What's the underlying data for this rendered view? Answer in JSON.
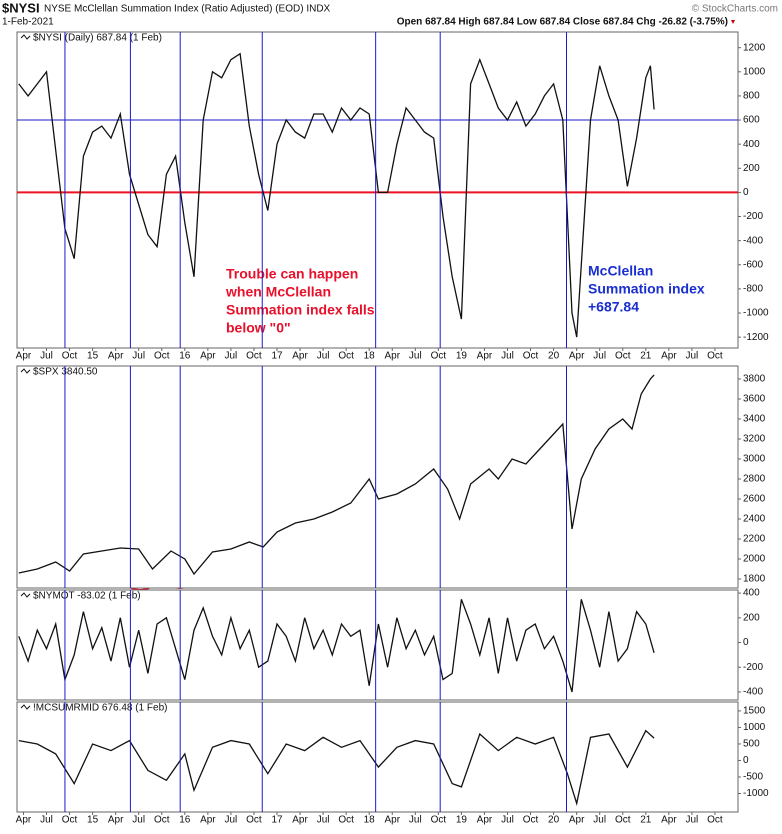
{
  "header": {
    "symbol": "$NYSI",
    "title": "NYSE McClellan Summation Index (Ratio Adjusted) (EOD) INDX",
    "date": "1-Feb-2021",
    "ohlc": "Open 687.84 High 687.84 Low 687.84 Close 687.84 Chg -26.82 (-3.75%)",
    "credit": "© StockCharts.com"
  },
  "event_lines": {
    "color": "#1a1acc",
    "x": [
      2014.7,
      2015.41,
      2015.95,
      2016.84,
      2018.07,
      2018.77,
      2020.14
    ]
  },
  "chart_data": [
    {
      "type": "line",
      "xlim": [
        2014.18,
        2022.0
      ],
      "ylim": [
        -1290,
        1330
      ],
      "yticks": [
        -1200,
        -1000,
        -800,
        -600,
        -400,
        -200,
        0,
        200,
        400,
        600,
        800,
        1000,
        1200
      ],
      "xticks": [
        {
          "value": 2014.25,
          "label": "Apr"
        },
        {
          "value": 2014.5,
          "label": "Jul"
        },
        {
          "value": 2014.75,
          "label": "Oct"
        },
        {
          "value": 2015,
          "label": "15"
        },
        {
          "value": 2015.25,
          "label": "Apr"
        },
        {
          "value": 2015.5,
          "label": "Jul"
        },
        {
          "value": 2015.75,
          "label": "Oct"
        },
        {
          "value": 2016,
          "label": "16"
        },
        {
          "value": 2016.25,
          "label": "Apr"
        },
        {
          "value": 2016.5,
          "label": "Jul"
        },
        {
          "value": 2016.75,
          "label": "Oct"
        },
        {
          "value": 2017,
          "label": "17"
        },
        {
          "value": 2017.25,
          "label": "Apr"
        },
        {
          "value": 2017.5,
          "label": "Jul"
        },
        {
          "value": 2017.75,
          "label": "Oct"
        },
        {
          "value": 2018,
          "label": "18"
        },
        {
          "value": 2018.25,
          "label": "Apr"
        },
        {
          "value": 2018.5,
          "label": "Jul"
        },
        {
          "value": 2018.75,
          "label": "Oct"
        },
        {
          "value": 2019,
          "label": "19"
        },
        {
          "value": 2019.25,
          "label": "Apr"
        },
        {
          "value": 2019.5,
          "label": "Jul"
        },
        {
          "value": 2019.75,
          "label": "Oct"
        },
        {
          "value": 2020,
          "label": "20"
        },
        {
          "value": 2020.25,
          "label": "Apr"
        },
        {
          "value": 2020.5,
          "label": "Jul"
        },
        {
          "value": 2020.75,
          "label": "Oct"
        },
        {
          "value": 2021,
          "label": "21"
        },
        {
          "value": 2021.25,
          "label": "Apr"
        },
        {
          "value": 2021.5,
          "label": "Jul"
        },
        {
          "value": 2021.75,
          "label": "Oct"
        }
      ],
      "hlines": [
        {
          "value": 0,
          "color": "#ee1122"
        },
        {
          "value": 600,
          "color": "#1a1acc"
        }
      ],
      "x": [
        2014.2,
        2014.3,
        2014.4,
        2014.5,
        2014.6,
        2014.7,
        2014.8,
        2014.9,
        2015,
        2015.1,
        2015.2,
        2015.3,
        2015.4,
        2015.5,
        2015.6,
        2015.7,
        2015.8,
        2015.9,
        2016,
        2016.1,
        2016.2,
        2016.3,
        2016.4,
        2016.5,
        2016.6,
        2016.7,
        2016.8,
        2016.9,
        2017,
        2017.1,
        2017.2,
        2017.3,
        2017.4,
        2017.5,
        2017.6,
        2017.7,
        2017.8,
        2017.9,
        2018,
        2018.1,
        2018.2,
        2018.3,
        2018.4,
        2018.5,
        2018.6,
        2018.7,
        2018.8,
        2018.9,
        2019,
        2019.1,
        2019.2,
        2019.3,
        2019.4,
        2019.5,
        2019.6,
        2019.7,
        2019.8,
        2019.9,
        2020,
        2020.1,
        2020.2,
        2020.25,
        2020.3,
        2020.4,
        2020.5,
        2020.6,
        2020.7,
        2020.8,
        2020.9,
        2021,
        2021.05,
        2021.09
      ],
      "series": [
        {
          "name": "$NYSI (Daily) 687.84 (1 Feb)",
          "color": "#111111",
          "values": [
            900,
            800,
            900,
            1000,
            350,
            -300,
            -550,
            300,
            500,
            550,
            450,
            650,
            150,
            -100,
            -350,
            -450,
            150,
            300,
            -250,
            -700,
            600,
            1000,
            950,
            1100,
            1150,
            550,
            150,
            -150,
            400,
            600,
            500,
            450,
            650,
            650,
            500,
            700,
            600,
            700,
            650,
            0,
            0,
            400,
            700,
            600,
            500,
            450,
            -200,
            -700,
            -1050,
            900,
            1100,
            900,
            700,
            600,
            750,
            550,
            650,
            800,
            900,
            600,
            -1000,
            -1200,
            -600,
            600,
            1050,
            800,
            600,
            50,
            450,
            950,
            1050,
            687.84
          ]
        }
      ],
      "annotations": [
        {
          "color": "#e8102a",
          "lines": [
            "Trouble can happen",
            "when McClellan",
            "Summation index falls",
            "below \"0\""
          ]
        },
        {
          "color": "#1a2fd0",
          "lines": [
            "McClellan",
            "Summation index",
            "+687.84"
          ]
        }
      ]
    },
    {
      "type": "line",
      "xlim": [
        2014.18,
        2022.0
      ],
      "ylim": [
        1710,
        3930
      ],
      "yticks": [
        1800,
        2000,
        2200,
        2400,
        2600,
        2800,
        3000,
        3200,
        3400,
        3600,
        3800
      ],
      "x": [
        2014.2,
        2014.4,
        2014.6,
        2014.75,
        2014.9,
        2015.1,
        2015.3,
        2015.5,
        2015.65,
        2015.85,
        2016,
        2016.1,
        2016.3,
        2016.5,
        2016.7,
        2016.85,
        2017,
        2017.2,
        2017.4,
        2017.6,
        2017.8,
        2018,
        2018.1,
        2018.3,
        2018.5,
        2018.7,
        2018.85,
        2018.98,
        2019.1,
        2019.3,
        2019.4,
        2019.55,
        2019.7,
        2019.9,
        2020.1,
        2020.2,
        2020.3,
        2020.45,
        2020.6,
        2020.75,
        2020.85,
        2020.95,
        2021.05,
        2021.09
      ],
      "series": [
        {
          "name": "$SPX 3840.50",
          "color": "#111111",
          "values": [
            1860,
            1900,
            1970,
            1880,
            2050,
            2080,
            2110,
            2100,
            1900,
            2080,
            2000,
            1850,
            2070,
            2100,
            2170,
            2120,
            2270,
            2360,
            2400,
            2470,
            2560,
            2800,
            2600,
            2650,
            2750,
            2900,
            2700,
            2400,
            2750,
            2900,
            2800,
            3000,
            2950,
            3150,
            3350,
            2300,
            2800,
            3100,
            3300,
            3400,
            3300,
            3650,
            3800,
            3840.5
          ]
        }
      ]
    },
    {
      "type": "line",
      "xlim": [
        2014.18,
        2022.0
      ],
      "ylim": [
        -465,
        425
      ],
      "yticks": [
        -400,
        -200,
        0,
        200,
        400
      ],
      "x": [
        2014.2,
        2014.3,
        2014.4,
        2014.5,
        2014.6,
        2014.7,
        2014.8,
        2014.9,
        2015,
        2015.1,
        2015.2,
        2015.3,
        2015.4,
        2015.5,
        2015.6,
        2015.7,
        2015.8,
        2015.9,
        2016,
        2016.1,
        2016.2,
        2016.3,
        2016.4,
        2016.5,
        2016.6,
        2016.7,
        2016.8,
        2016.9,
        2017,
        2017.1,
        2017.2,
        2017.3,
        2017.4,
        2017.5,
        2017.6,
        2017.7,
        2017.8,
        2017.9,
        2018,
        2018.1,
        2018.2,
        2018.3,
        2018.4,
        2018.5,
        2018.6,
        2018.7,
        2018.8,
        2018.9,
        2019,
        2019.1,
        2019.2,
        2019.3,
        2019.4,
        2019.5,
        2019.6,
        2019.7,
        2019.8,
        2019.9,
        2020,
        2020.1,
        2020.2,
        2020.3,
        2020.4,
        2020.5,
        2020.6,
        2020.7,
        2020.8,
        2020.9,
        2021,
        2021.09
      ],
      "series": [
        {
          "name": "$NYMOT -83.02 (1 Feb)",
          "color": "#111111",
          "values": [
            50,
            -150,
            100,
            -50,
            150,
            -300,
            -100,
            250,
            -50,
            120,
            -150,
            200,
            -200,
            100,
            -250,
            150,
            200,
            -50,
            -300,
            100,
            280,
            50,
            -100,
            200,
            -50,
            100,
            -200,
            -150,
            150,
            50,
            -150,
            200,
            -50,
            100,
            -100,
            150,
            50,
            100,
            -350,
            150,
            -200,
            200,
            -50,
            100,
            -100,
            50,
            -300,
            -250,
            350,
            150,
            -100,
            200,
            -250,
            200,
            -150,
            100,
            150,
            -50,
            50,
            -150,
            -400,
            350,
            100,
            -200,
            250,
            -150,
            -50,
            250,
            150,
            -83.02
          ]
        }
      ]
    },
    {
      "type": "line",
      "xlim": [
        2014.18,
        2022.0
      ],
      "ylim": [
        -1560,
        1770
      ],
      "yticks": [
        -1000,
        -500,
        0,
        500,
        1000,
        1500
      ],
      "xticks": [
        {
          "value": 2014.25,
          "label": "Apr"
        },
        {
          "value": 2014.5,
          "label": "Jul"
        },
        {
          "value": 2014.75,
          "label": "Oct"
        },
        {
          "value": 2015,
          "label": "15"
        },
        {
          "value": 2015.25,
          "label": "Apr"
        },
        {
          "value": 2015.5,
          "label": "Jul"
        },
        {
          "value": 2015.75,
          "label": "Oct"
        },
        {
          "value": 2016,
          "label": "16"
        },
        {
          "value": 2016.25,
          "label": "Apr"
        },
        {
          "value": 2016.5,
          "label": "Jul"
        },
        {
          "value": 2016.75,
          "label": "Oct"
        },
        {
          "value": 2017,
          "label": "17"
        },
        {
          "value": 2017.25,
          "label": "Apr"
        },
        {
          "value": 2017.5,
          "label": "Jul"
        },
        {
          "value": 2017.75,
          "label": "Oct"
        },
        {
          "value": 2018,
          "label": "18"
        },
        {
          "value": 2018.25,
          "label": "Apr"
        },
        {
          "value": 2018.5,
          "label": "Jul"
        },
        {
          "value": 2018.75,
          "label": "Oct"
        },
        {
          "value": 2019,
          "label": "19"
        },
        {
          "value": 2019.25,
          "label": "Apr"
        },
        {
          "value": 2019.5,
          "label": "Jul"
        },
        {
          "value": 2019.75,
          "label": "Oct"
        },
        {
          "value": 2020,
          "label": "20"
        },
        {
          "value": 2020.25,
          "label": "Apr"
        },
        {
          "value": 2020.5,
          "label": "Jul"
        },
        {
          "value": 2020.75,
          "label": "Oct"
        },
        {
          "value": 2021,
          "label": "21"
        },
        {
          "value": 2021.25,
          "label": "Apr"
        },
        {
          "value": 2021.5,
          "label": "Jul"
        },
        {
          "value": 2021.75,
          "label": "Oct"
        }
      ],
      "x": [
        2014.2,
        2014.4,
        2014.6,
        2014.8,
        2015,
        2015.2,
        2015.4,
        2015.6,
        2015.8,
        2016,
        2016.1,
        2016.3,
        2016.5,
        2016.7,
        2016.9,
        2017.1,
        2017.3,
        2017.5,
        2017.7,
        2017.9,
        2018.1,
        2018.3,
        2018.5,
        2018.7,
        2018.9,
        2019,
        2019.2,
        2019.4,
        2019.6,
        2019.8,
        2020,
        2020.15,
        2020.25,
        2020.4,
        2020.6,
        2020.8,
        2021,
        2021.09
      ],
      "series": [
        {
          "name": "!MCSUMRMID 676.48 (1 Feb)",
          "color": "#111111",
          "values": [
            600,
            500,
            200,
            -700,
            500,
            300,
            600,
            -300,
            -600,
            200,
            -900,
            400,
            600,
            500,
            -400,
            500,
            300,
            700,
            400,
            600,
            -200,
            400,
            600,
            500,
            -700,
            -800,
            800,
            300,
            700,
            500,
            700,
            -400,
            -1300,
            700,
            800,
            -200,
            900,
            676.48
          ]
        }
      ]
    }
  ]
}
